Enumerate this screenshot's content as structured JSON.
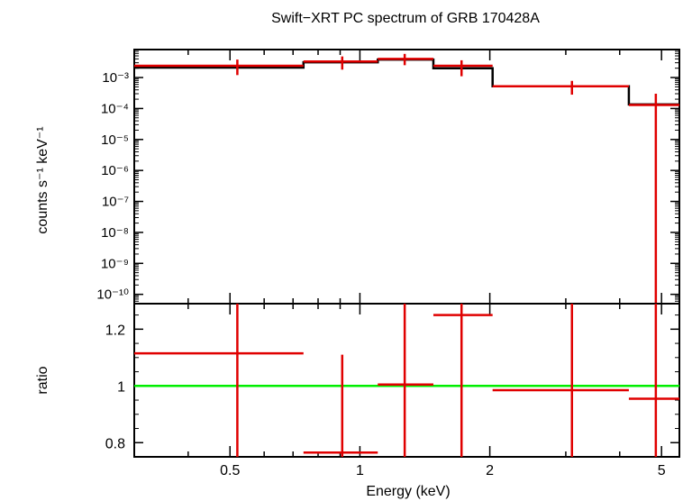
{
  "title": "Swift−XRT PC spectrum of GRB 170428A",
  "chart_data": [
    {
      "type": "line",
      "panel": "spectrum",
      "ylabel": "counts s⁻¹ keV⁻¹",
      "xscale": "log",
      "yscale": "log",
      "xlim": [
        0.3,
        5.5
      ],
      "ylim": [
        5e-11,
        0.008
      ],
      "ytick_labels": [
        "10⁻³",
        "10⁻⁴",
        "10⁻⁵",
        "10⁻⁶",
        "10⁻⁷",
        "10⁻⁸",
        "10⁻⁹",
        "10⁻¹⁰"
      ],
      "yticks": [
        0.001,
        0.0001,
        1e-05,
        1e-06,
        1e-07,
        1e-08,
        1e-09,
        1e-10
      ],
      "data_color": "#e00000",
      "model_color": "#000000",
      "data": [
        {
          "x": 0.52,
          "xlo": 0.3,
          "xhi": 0.74,
          "y": 0.0024,
          "ylo": 0.0012,
          "yhi": 0.0038
        },
        {
          "x": 0.91,
          "xlo": 0.74,
          "xhi": 1.1,
          "y": 0.0033,
          "ylo": 0.0018,
          "yhi": 0.0048
        },
        {
          "x": 1.27,
          "xlo": 1.1,
          "xhi": 1.48,
          "y": 0.004,
          "ylo": 0.0025,
          "yhi": 0.0058
        },
        {
          "x": 1.72,
          "xlo": 1.48,
          "xhi": 2.03,
          "y": 0.0024,
          "ylo": 0.0011,
          "yhi": 0.0036
        },
        {
          "x": 3.1,
          "xlo": 2.03,
          "xhi": 4.2,
          "y": 0.00052,
          "ylo": 0.00028,
          "yhi": 0.00078
        },
        {
          "x": 4.85,
          "xlo": 4.2,
          "xhi": 5.5,
          "y": 0.00013,
          "ylo": 5e-11,
          "yhi": 0.0003
        }
      ],
      "model": [
        {
          "xlo": 0.3,
          "xhi": 0.74,
          "y": 0.0021
        },
        {
          "xlo": 0.74,
          "xhi": 1.1,
          "y": 0.0031
        },
        {
          "xlo": 1.1,
          "xhi": 1.48,
          "y": 0.0038
        },
        {
          "xlo": 1.48,
          "xhi": 2.03,
          "y": 0.002
        },
        {
          "xlo": 2.03,
          "xhi": 4.2,
          "y": 0.00052
        },
        {
          "xlo": 4.2,
          "xhi": 5.5,
          "y": 0.000135
        }
      ]
    },
    {
      "type": "scatter",
      "panel": "ratio",
      "xlabel": "Energy (keV)",
      "ylabel": "ratio",
      "xscale": "log",
      "xlim": [
        0.3,
        5.5
      ],
      "ylim": [
        0.75,
        1.29
      ],
      "yticks": [
        0.8,
        1,
        1.2
      ],
      "ytick_labels": [
        "0.8",
        "1",
        "1.2"
      ],
      "xticks": [
        0.5,
        1,
        2,
        5
      ],
      "xtick_labels": [
        "0.5",
        "1",
        "2",
        "5"
      ],
      "reference_line": 1,
      "reference_color": "#00ee00",
      "data_color": "#e00000",
      "data": [
        {
          "x": 0.52,
          "xlo": 0.3,
          "xhi": 0.74,
          "y": 1.115,
          "ylo": 0.75,
          "yhi": 1.29
        },
        {
          "x": 0.91,
          "xlo": 0.74,
          "xhi": 1.1,
          "y": 0.765,
          "ylo": 0.75,
          "yhi": 1.11
        },
        {
          "x": 1.27,
          "xlo": 1.1,
          "xhi": 1.48,
          "y": 1.005,
          "ylo": 0.75,
          "yhi": 1.29
        },
        {
          "x": 1.72,
          "xlo": 1.48,
          "xhi": 2.03,
          "y": 1.25,
          "ylo": 0.75,
          "yhi": 1.29
        },
        {
          "x": 3.1,
          "xlo": 2.03,
          "xhi": 4.2,
          "y": 0.985,
          "ylo": 0.75,
          "yhi": 1.29
        },
        {
          "x": 4.85,
          "xlo": 4.2,
          "xhi": 5.5,
          "y": 0.955,
          "ylo": 0.75,
          "yhi": 1.29
        }
      ]
    }
  ]
}
